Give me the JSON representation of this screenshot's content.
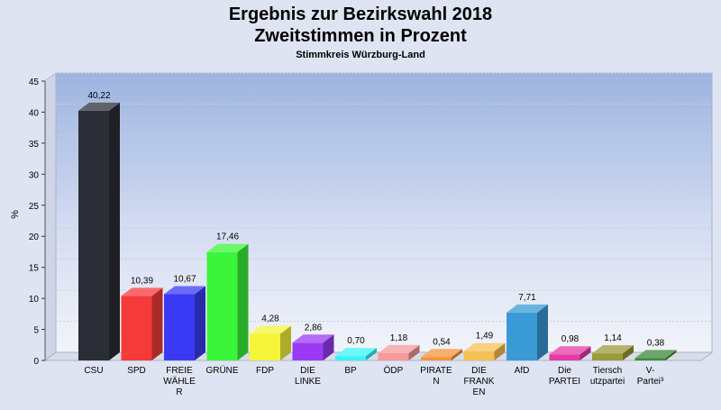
{
  "chart_data": {
    "type": "bar",
    "title_lines": [
      "Ergebnis zur Bezirkswahl 2018",
      "Zweitstimmen in Prozent"
    ],
    "subtitle": "Stimmkreis Würzburg-Land",
    "ylabel": "%",
    "xlabel": "",
    "ylim": [
      0,
      45
    ],
    "yticks": [
      0,
      5,
      10,
      15,
      20,
      25,
      30,
      35,
      40,
      45
    ],
    "grid": true,
    "legend": "none",
    "categories": [
      [
        "CSU"
      ],
      [
        "SPD"
      ],
      [
        "FREIE",
        "WÄHLE",
        "R"
      ],
      [
        "GRÜNE"
      ],
      [
        "FDP"
      ],
      [
        "DIE",
        "LINKE"
      ],
      [
        "BP"
      ],
      [
        "ÖDP"
      ],
      [
        "PIRATE",
        "N"
      ],
      [
        "DIE",
        "FRANK",
        "EN"
      ],
      [
        "AfD"
      ],
      [
        "Die",
        "PARTEI"
      ],
      [
        "Tiersch",
        "utzpartei"
      ],
      [
        "V-",
        "Partei³"
      ]
    ],
    "values": [
      40.22,
      10.39,
      10.67,
      17.46,
      4.28,
      2.86,
      0.7,
      1.18,
      0.54,
      1.49,
      7.71,
      0.98,
      1.14,
      0.38
    ],
    "value_labels": [
      "40,22",
      "10,39",
      "10,67",
      "17,46",
      "4,28",
      "2,86",
      "0,70",
      "1,18",
      "0,54",
      "1,49",
      "7,71",
      "0,98",
      "1,14",
      "0,38"
    ],
    "colors": [
      "#2b2e36",
      "#f53a3a",
      "#3a3af5",
      "#3af53a",
      "#f5f53a",
      "#9a3af5",
      "#3af5f5",
      "#f59a9a",
      "#f5943a",
      "#f5c055",
      "#3a9ad5",
      "#e53aa5",
      "#9a9a3a",
      "#3a8a3a"
    ]
  }
}
